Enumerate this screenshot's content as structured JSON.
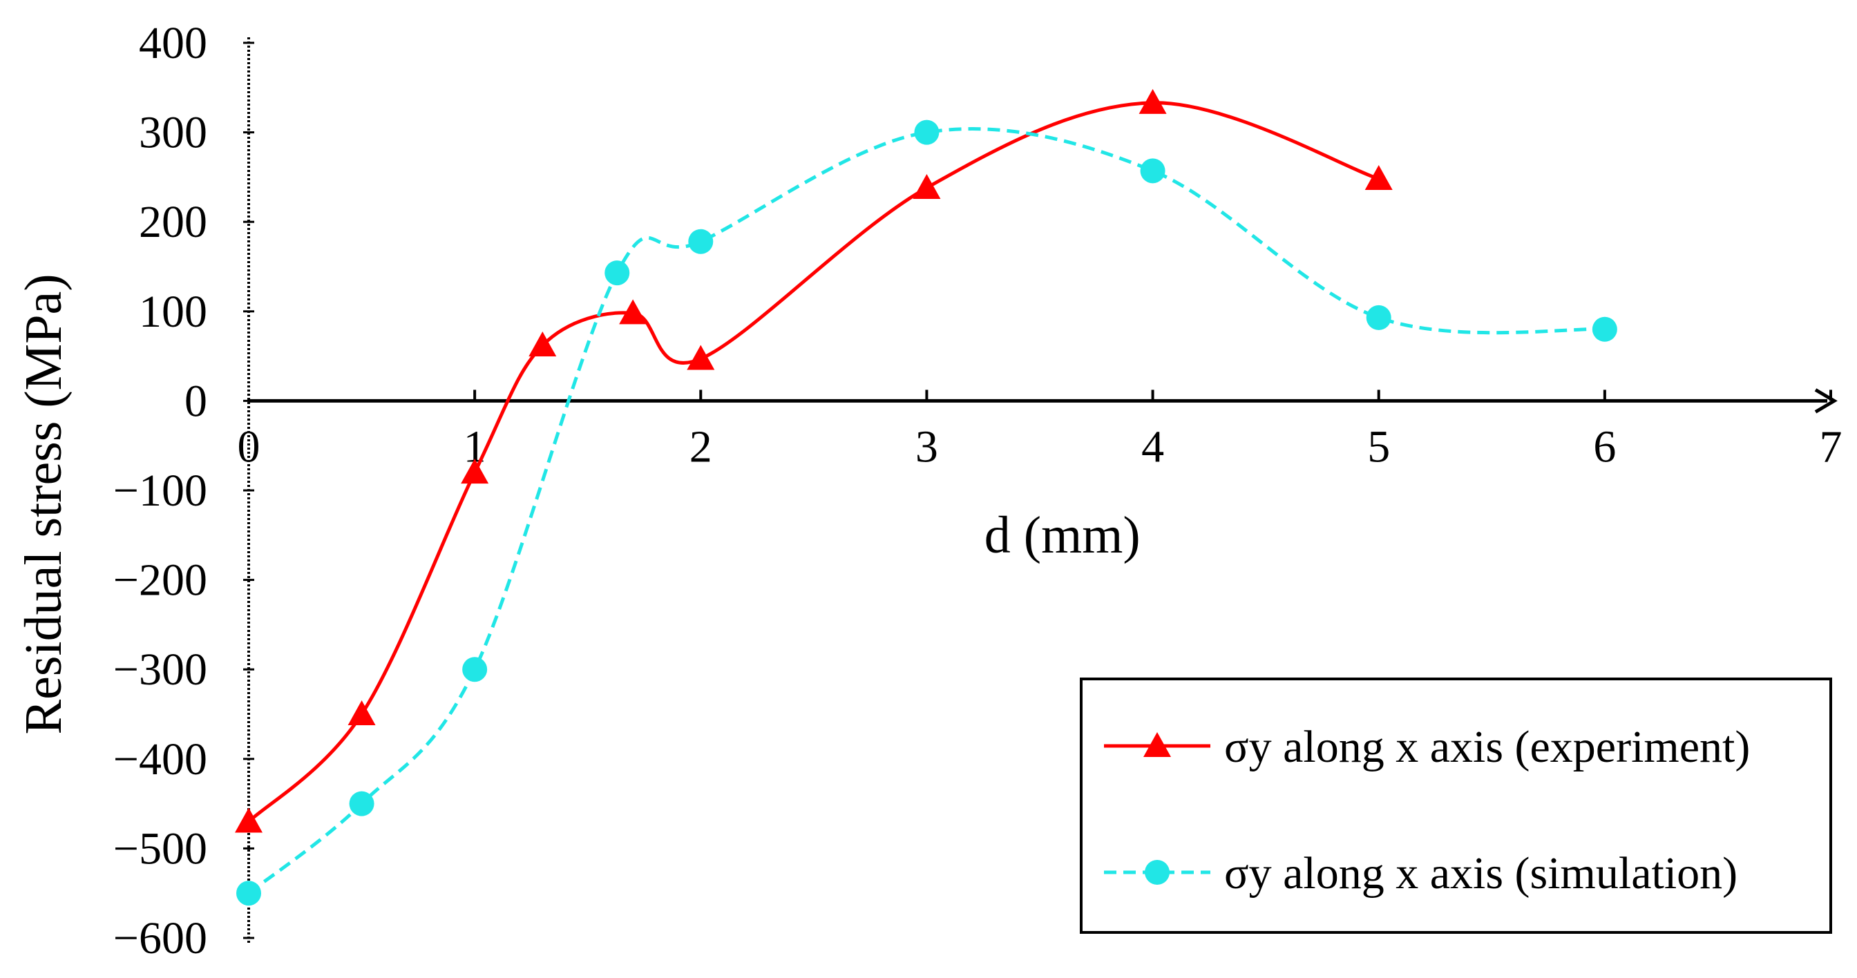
{
  "chart_data": {
    "type": "line",
    "title": "",
    "xlabel": "d (mm)",
    "ylabel": "Residual stress (MPa)",
    "xlim": [
      0,
      7
    ],
    "ylim": [
      -600,
      400
    ],
    "x_ticks": [
      "0",
      "1",
      "2",
      "3",
      "4",
      "5",
      "6",
      "7"
    ],
    "y_ticks": [
      "400",
      "300",
      "200",
      "100",
      "0",
      "−100",
      "−200",
      "−300",
      "−400",
      "−500",
      "−600"
    ],
    "grid": false,
    "smoothed": true,
    "legend_position": "bottom-right",
    "series": [
      {
        "name": "σy along x axis (experiment)",
        "color": "#ff0000",
        "marker": "triangle",
        "line_style": "solid",
        "x": [
          0,
          0.5,
          1.0,
          1.3,
          1.7,
          2.0,
          3.0,
          4.0,
          5.0
        ],
        "y": [
          -470,
          -350,
          -80,
          62,
          98,
          47,
          238,
          333,
          248
        ]
      },
      {
        "name": "σy along x axis (simulation)",
        "color": "#21e6e6",
        "marker": "circle",
        "line_style": "dashed",
        "x": [
          0,
          0.5,
          1.0,
          1.63,
          2.0,
          3.0,
          4.0,
          5.0,
          6.0
        ],
        "y": [
          -550,
          -450,
          -300,
          143,
          178,
          300,
          257,
          93,
          80
        ]
      }
    ]
  }
}
